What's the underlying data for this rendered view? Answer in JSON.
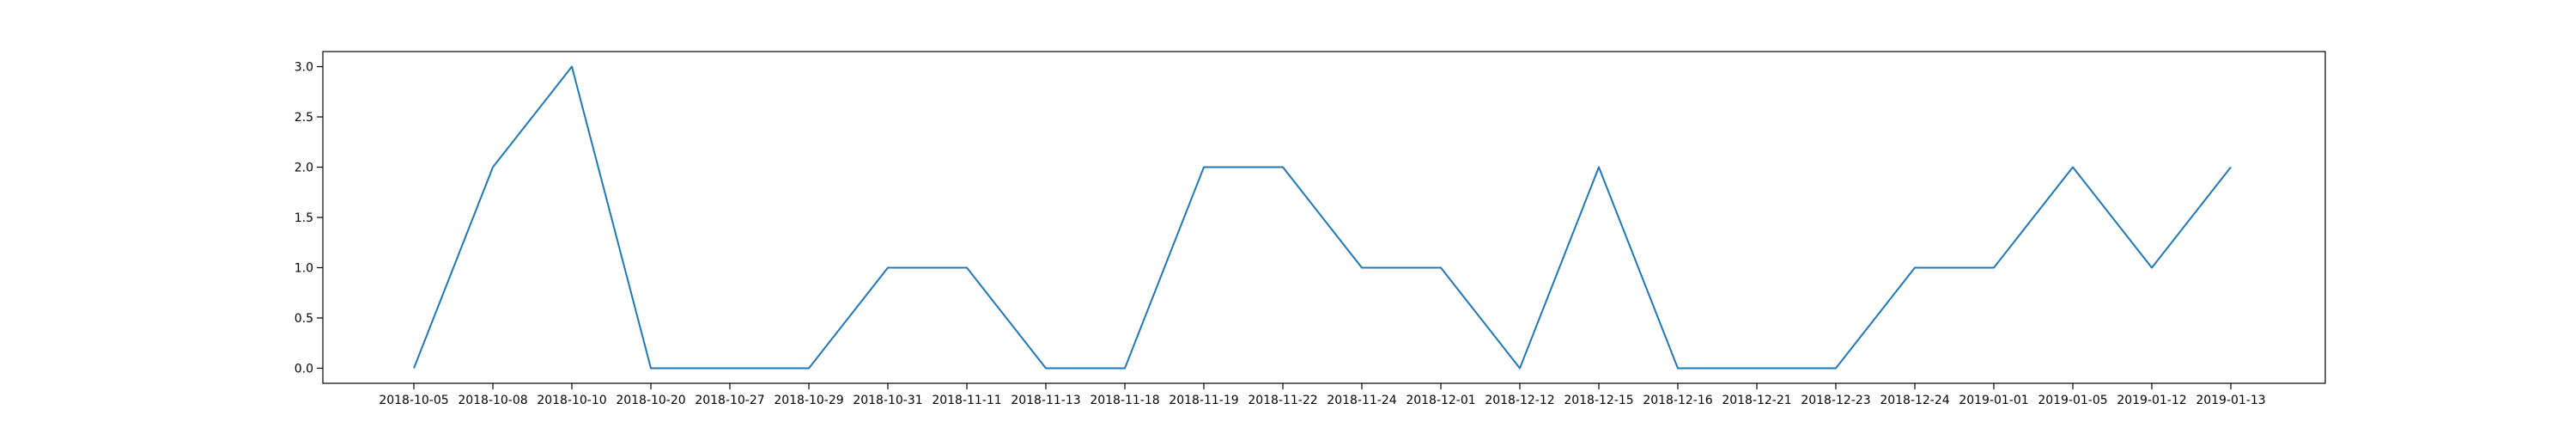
{
  "chart_data": {
    "type": "line",
    "categories": [
      "2018-10-05",
      "2018-10-08",
      "2018-10-10",
      "2018-10-20",
      "2018-10-27",
      "2018-10-29",
      "2018-10-31",
      "2018-11-11",
      "2018-11-13",
      "2018-11-18",
      "2018-11-19",
      "2018-11-22",
      "2018-11-24",
      "2018-12-01",
      "2018-12-12",
      "2018-12-15",
      "2018-12-16",
      "2018-12-21",
      "2018-12-23",
      "2018-12-24",
      "2019-01-01",
      "2019-01-05",
      "2019-01-12",
      "2019-01-13"
    ],
    "series": [
      {
        "values": [
          0,
          2,
          3,
          0,
          0,
          0,
          1,
          1,
          0,
          0,
          2,
          2,
          1,
          1,
          0,
          2,
          0,
          0,
          0,
          1,
          1,
          2,
          1,
          2
        ],
        "color": "#1f77b4"
      }
    ],
    "yticks": [
      "0.0",
      "0.5",
      "1.0",
      "1.5",
      "2.0",
      "2.5",
      "3.0"
    ],
    "ylim": [
      -0.15,
      3.15
    ],
    "grid": false,
    "title": "",
    "xlabel": "",
    "ylabel": ""
  }
}
